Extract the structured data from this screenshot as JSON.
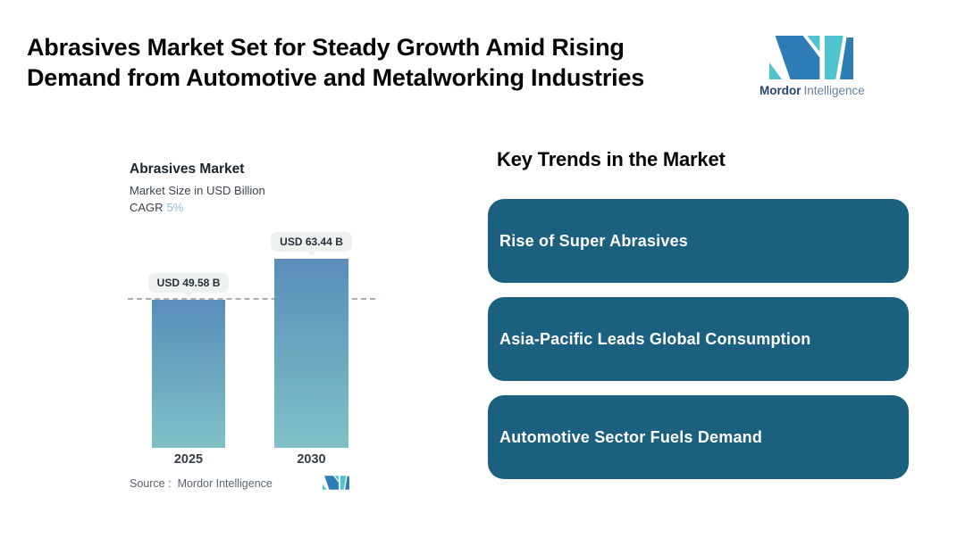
{
  "header": {
    "title_line1": "Abrasives Market Set for Steady Growth Amid Rising",
    "title_line2": "Demand from Automotive and Metalworking Industries"
  },
  "brand": {
    "name_bold": "Mordor",
    "name_light": "Intelligence"
  },
  "chart": {
    "title": "Abrasives Market",
    "subtitle": "Market Size in USD Billion",
    "cagr_label": "CAGR",
    "cagr_value": "5%",
    "source_label": "Source :",
    "source_value": "Mordor Intelligence"
  },
  "chart_data": {
    "type": "bar",
    "title": "Abrasives Market",
    "subtitle": "Market Size in USD Billion",
    "unit": "USD Billion",
    "cagr": "5%",
    "categories": [
      "2025",
      "2030"
    ],
    "values": [
      49.58,
      63.44
    ],
    "value_labels": [
      "USD 49.58 B",
      "USD 63.44 B"
    ],
    "ylim": [
      0,
      63.44
    ],
    "reference_line": 49.58,
    "grid": "off",
    "legend": "none",
    "source": "Mordor Intelligence"
  },
  "trends": {
    "heading": "Key Trends in the Market",
    "cards": [
      {
        "label": "Rise of Super Abrasives"
      },
      {
        "label": "Asia-Pacific Leads Global Consumption"
      },
      {
        "label": "Automotive Sector Fuels Demand"
      }
    ]
  },
  "theme": {
    "teal": "#4fc3ce",
    "blue": "#2e7cb6",
    "card_bg": "#1c6080",
    "card_text": "#ffffff",
    "bar_top": "#5a8db9",
    "bar_bottom": "#80c1c7",
    "pill_bg": "#edf1ef",
    "dash_line": "#a6b0b6",
    "cagr_accent": "#8fb9da",
    "brand_navy": "#26466b",
    "brand_slate": "#64819f"
  }
}
